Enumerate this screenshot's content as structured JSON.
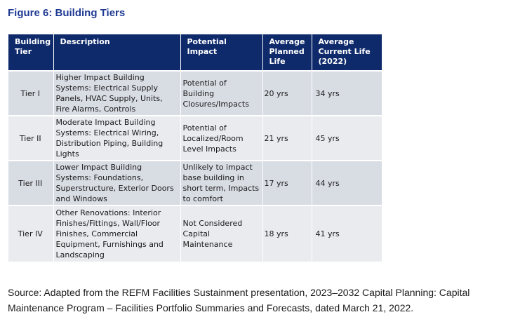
{
  "figure": {
    "title": "Figure 6: Building Tiers"
  },
  "table": {
    "headers": {
      "tier": "Building Tier",
      "description": "Description",
      "impact": "Potential Impact",
      "planned": "Average Planned Life",
      "current": "Average Current Life (2022)"
    },
    "rows": [
      {
        "tier": "Tier I",
        "description": "Higher Impact Building Systems: Electrical Supply Panels, HVAC Supply, Units, Fire Alarms, Controls",
        "impact": "Potential of Building Closures/Impacts",
        "planned": "20 yrs",
        "current": "34 yrs"
      },
      {
        "tier": "Tier II",
        "description": "Moderate Impact Building Systems: Electrical Wiring, Distribution Piping, Building Lights",
        "impact": "Potential of Localized/Room Level Impacts",
        "planned": "21 yrs",
        "current": "45 yrs"
      },
      {
        "tier": "Tier III",
        "description": "Lower Impact Building Systems: Foundations, Superstructure, Exterior Doors and Windows",
        "impact": "Unlikely to impact base building in short term, Impacts to comfort",
        "planned": "17 yrs",
        "current": "44 yrs"
      },
      {
        "tier": "Tier IV",
        "description": "Other Renovations: Interior Finishes/Fittings, Wall/Floor Finishes, Commercial Equipment, Furnishings and Landscaping",
        "impact": "Not Considered Capital Maintenance",
        "planned": "18 yrs",
        "current": "41 yrs"
      }
    ]
  },
  "source_note": "Source: Adapted from the REFM Facilities Sustainment presentation, 2023–2032 Capital Planning: Capital Maintenance Program – Facilities Portfolio Summaries and Forecasts, dated March 21, 2022."
}
